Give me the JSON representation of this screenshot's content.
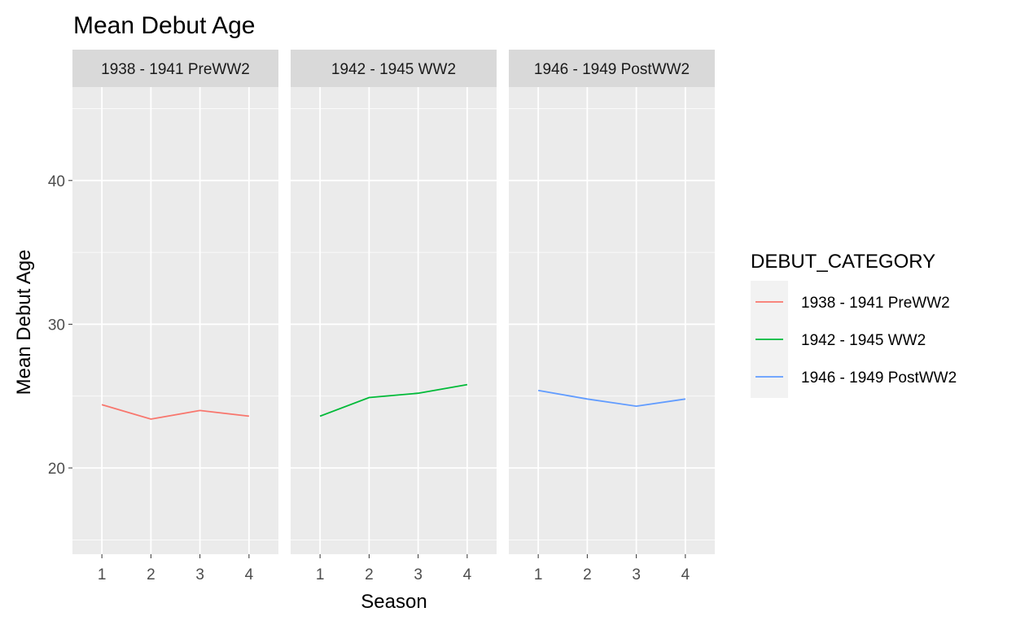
{
  "chart_data": {
    "type": "line",
    "title": "Mean Debut Age",
    "xlabel": "Season",
    "ylabel": "Mean Debut Age",
    "x_ticks": [
      1,
      2,
      3,
      4
    ],
    "y_ticks": [
      20,
      30,
      40
    ],
    "xlim": [
      0.4,
      4.6
    ],
    "ylim": [
      14,
      46.5
    ],
    "grid": true,
    "legend": {
      "title": "DEBUT_CATEGORY",
      "position": "right"
    },
    "panels": [
      {
        "label": "1938 - 1941 PreWW2",
        "series": [
          {
            "name": "1938 - 1941 PreWW2",
            "color": "#F8766D",
            "x": [
              1,
              2,
              3,
              4
            ],
            "y": [
              24.4,
              23.4,
              24.0,
              23.6
            ]
          }
        ]
      },
      {
        "label": "1942 - 1945 WW2",
        "series": [
          {
            "name": "1942 - 1945 WW2",
            "color": "#00BA38",
            "x": [
              1,
              2,
              3,
              4
            ],
            "y": [
              23.6,
              24.9,
              25.2,
              25.8
            ]
          }
        ]
      },
      {
        "label": "1946 - 1949 PostWW2",
        "series": [
          {
            "name": "1946 - 1949 PostWW2",
            "color": "#619CFF",
            "x": [
              1,
              2,
              3,
              4
            ],
            "y": [
              25.4,
              24.8,
              24.3,
              24.8
            ]
          }
        ]
      }
    ]
  }
}
